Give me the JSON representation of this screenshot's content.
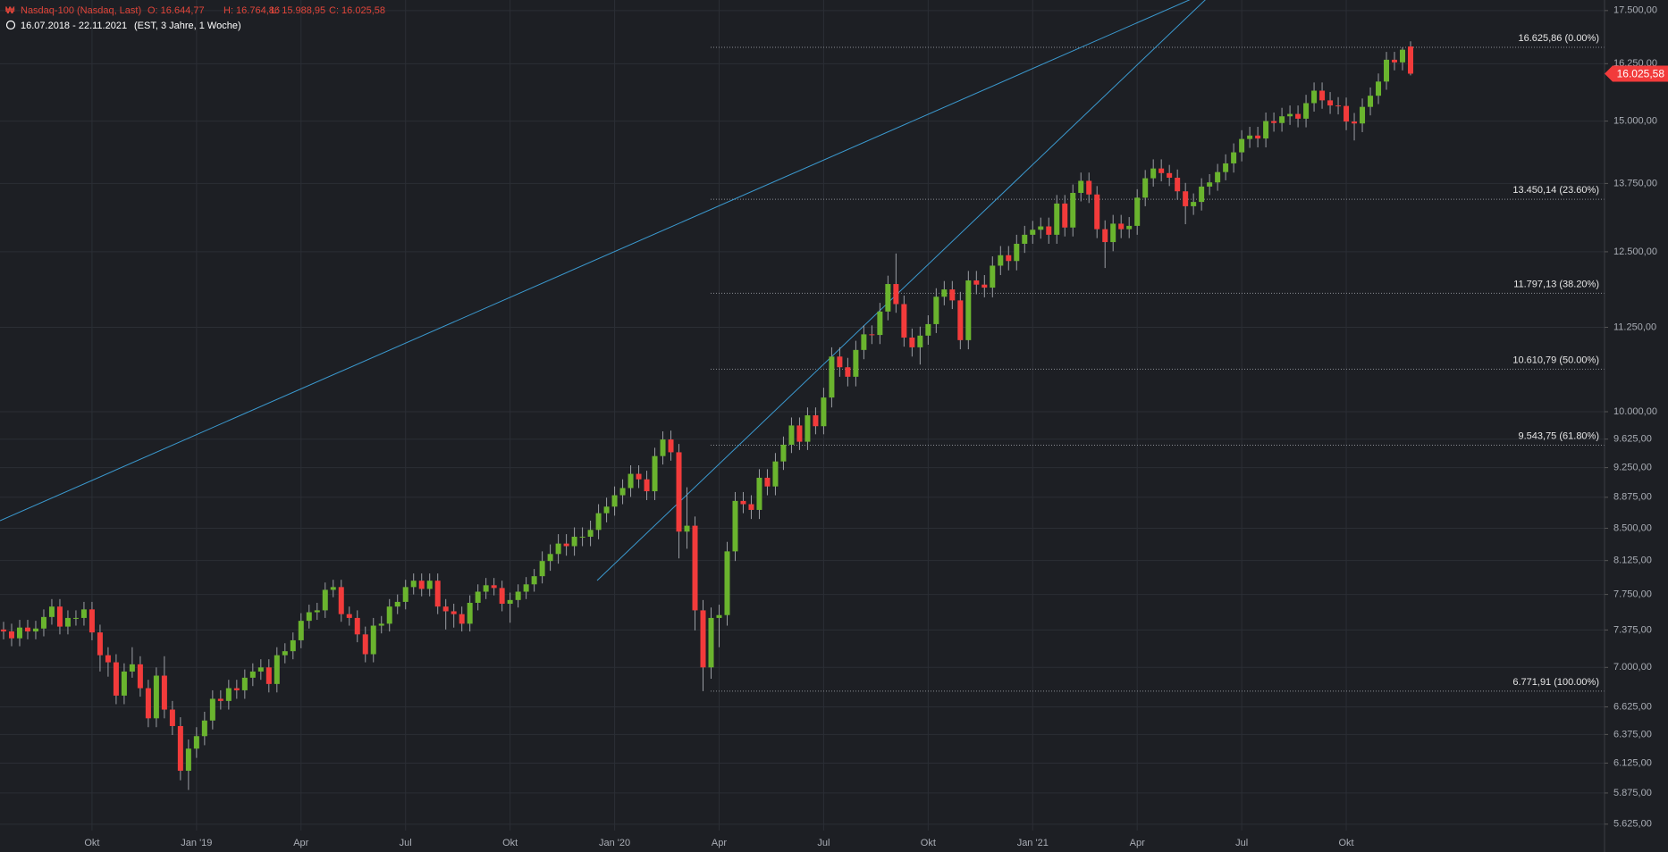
{
  "chart_data": {
    "type": "candlestick",
    "title": "Nasdaq-100 (Nasdaq, Last)",
    "header_values": [
      "O: 16.644,77",
      "H: 16.764,86",
      "L: 15.988,95",
      "C: 16.025,58"
    ],
    "subtitle": "16.07.2018 - 22.11.2021",
    "subtitle_note": "(EST, 3 Jahre, 1 Woche)",
    "log_scale": true,
    "grid": true,
    "up_color": "#6ab42e",
    "down_color": "#f23b3b",
    "ylim": [
      5575,
      17760
    ],
    "yticks": [
      {
        "value": 17500,
        "label": "17.500,00"
      },
      {
        "value": 16250,
        "label": "16.250,00"
      },
      {
        "value": 15000,
        "label": "15.000,00"
      },
      {
        "value": 13750,
        "label": "13.750,00"
      },
      {
        "value": 12500,
        "label": "12.500,00"
      },
      {
        "value": 11250,
        "label": "11.250,00"
      },
      {
        "value": 10000,
        "label": "10.000,00"
      },
      {
        "value": 9625,
        "label": "9.625,00"
      },
      {
        "value": 9250,
        "label": "9.250,00"
      },
      {
        "value": 8875,
        "label": "8.875,00"
      },
      {
        "value": 8500,
        "label": "8.500,00"
      },
      {
        "value": 8125,
        "label": "8.125,00"
      },
      {
        "value": 7750,
        "label": "7.750,00"
      },
      {
        "value": 7375,
        "label": "7.375,00"
      },
      {
        "value": 7000,
        "label": "7.000,00"
      },
      {
        "value": 6625,
        "label": "6.625,00"
      },
      {
        "value": 6375,
        "label": "6.375,00"
      },
      {
        "value": 6125,
        "label": "6.125,00"
      },
      {
        "value": 5875,
        "label": "5.875,00"
      },
      {
        "value": 5625,
        "label": "5.625,00"
      }
    ],
    "last_price": {
      "value": 16025.58,
      "label": "16.025,58"
    },
    "fib_levels": [
      {
        "value": 16625.86,
        "label": "16.625,86 (0.00%)"
      },
      {
        "value": 13450.14,
        "label": "13.450,14 (23.60%)"
      },
      {
        "value": 11797.13,
        "label": "11.797,13 (38.20%)"
      },
      {
        "value": 10610.79,
        "label": "10.610,79 (50.00%)"
      },
      {
        "value": 9543.75,
        "label": "9.543,75 (61.80%)"
      },
      {
        "value": 6771.91,
        "label": "6.771,91 (100.00%)"
      }
    ],
    "categories": [
      null,
      null,
      null,
      null,
      null,
      null,
      null,
      null,
      null,
      null,
      null,
      "Okt",
      null,
      null,
      null,
      null,
      null,
      null,
      null,
      null,
      null,
      null,
      null,
      null,
      "Jan '19",
      null,
      null,
      null,
      null,
      null,
      null,
      null,
      null,
      null,
      null,
      null,
      null,
      "Apr",
      null,
      null,
      null,
      null,
      null,
      null,
      null,
      null,
      null,
      null,
      null,
      null,
      "Jul",
      null,
      null,
      null,
      null,
      null,
      null,
      null,
      null,
      null,
      null,
      null,
      null,
      "Okt",
      null,
      null,
      null,
      null,
      null,
      null,
      null,
      null,
      null,
      null,
      null,
      null,
      "Jan '20",
      null,
      null,
      null,
      null,
      null,
      null,
      null,
      null,
      null,
      null,
      null,
      null,
      "Apr",
      null,
      null,
      null,
      null,
      null,
      null,
      null,
      null,
      null,
      null,
      null,
      null,
      "Jul",
      null,
      null,
      null,
      null,
      null,
      null,
      null,
      null,
      null,
      null,
      null,
      null,
      "Okt",
      null,
      null,
      null,
      null,
      null,
      null,
      null,
      null,
      null,
      null,
      null,
      null,
      "Jan '21",
      null,
      null,
      null,
      null,
      null,
      null,
      null,
      null,
      null,
      null,
      null,
      null,
      "Apr",
      null,
      null,
      null,
      null,
      null,
      null,
      null,
      null,
      null,
      null,
      null,
      null,
      "Jul",
      null,
      null,
      null,
      null,
      null,
      null,
      null,
      null,
      null,
      null,
      null,
      null,
      "Okt",
      null,
      null,
      null,
      null,
      null,
      null,
      null,
      null
    ],
    "open": [
      7380,
      7360,
      7290,
      7400,
      7360,
      7390,
      7510,
      7620,
      7410,
      7500,
      7500,
      7590,
      7350,
      7120,
      7050,
      6730,
      6960,
      7030,
      6800,
      6520,
      6920,
      6600,
      6450,
      6060,
      6250,
      6360,
      6500,
      6700,
      6680,
      6800,
      6780,
      6900,
      6960,
      7000,
      6840,
      7120,
      7160,
      7270,
      7470,
      7560,
      7580,
      7800,
      7830,
      7540,
      7500,
      7330,
      7130,
      7420,
      7440,
      7620,
      7670,
      7830,
      7900,
      7810,
      7900,
      7620,
      7570,
      7540,
      7440,
      7660,
      7780,
      7850,
      7820,
      7650,
      7690,
      7780,
      7860,
      7950,
      8120,
      8200,
      8320,
      8290,
      8400,
      8400,
      8480,
      8680,
      8760,
      8900,
      8990,
      9170,
      9100,
      8950,
      9400,
      9620,
      9450,
      8460,
      8530,
      7580,
      7000,
      7500,
      7530,
      8230,
      8830,
      8790,
      8720,
      9120,
      9010,
      9330,
      9550,
      9810,
      9590,
      9950,
      9800,
      10200,
      10800,
      10640,
      10500,
      10900,
      11140,
      11130,
      11500,
      11950,
      11620,
      11090,
      10940,
      11120,
      11300,
      11740,
      11860,
      11680,
      11050,
      12010,
      11940,
      11890,
      12260,
      12440,
      12340,
      12640,
      12800,
      12890,
      12950,
      12800,
      13370,
      12930,
      13570,
      13800,
      13540,
      12900,
      12670,
      13000,
      12900,
      12960,
      13480,
      13850,
      14040,
      13950,
      13860,
      13600,
      13320,
      13400,
      13690,
      13770,
      13970,
      14140,
      14360,
      14630,
      14700,
      14640,
      15000,
      14960,
      15100,
      15150,
      15050,
      15380,
      15650,
      15440,
      15330,
      15320,
      14990,
      14950,
      15300,
      15540,
      15850,
      16340,
      16280,
      16644.77
    ],
    "high": [
      7460,
      7440,
      7480,
      7480,
      7470,
      7590,
      7700,
      7700,
      7580,
      7580,
      7670,
      7670,
      7430,
      7200,
      7130,
      7040,
      7200,
      7110,
      6880,
      7000,
      7110,
      6680,
      6530,
      6330,
      6440,
      6580,
      6780,
      6780,
      6880,
      6880,
      6980,
      7040,
      7080,
      7080,
      7200,
      7240,
      7350,
      7550,
      7640,
      7660,
      7880,
      7910,
      7910,
      7620,
      7580,
      7410,
      7500,
      7520,
      7700,
      7750,
      7910,
      7980,
      7980,
      7980,
      7980,
      7700,
      7650,
      7620,
      7740,
      7860,
      7930,
      7930,
      7900,
      7770,
      7860,
      7940,
      8030,
      8230,
      8310,
      8430,
      8430,
      8510,
      8510,
      8590,
      8790,
      8870,
      9010,
      9100,
      9280,
      9280,
      9210,
      9510,
      9730,
      9740,
      9560,
      9000,
      8640,
      7690,
      7610,
      7640,
      8340,
      8940,
      8940,
      8900,
      9230,
      9230,
      9440,
      9660,
      9920,
      9920,
      10060,
      10060,
      10340,
      10940,
      10940,
      10780,
      11040,
      11280,
      11280,
      11640,
      12090,
      12470,
      11760,
      11230,
      11260,
      11440,
      11880,
      12000,
      12000,
      11820,
      12170,
      12170,
      12100,
      12420,
      12600,
      12600,
      12800,
      12960,
      13050,
      13110,
      13110,
      13530,
      13530,
      13730,
      13960,
      13960,
      13700,
      13060,
      13160,
      13160,
      13120,
      13640,
      14010,
      14220,
      14220,
      14110,
      14020,
      13760,
      13560,
      13850,
      13930,
      14130,
      14320,
      14540,
      14810,
      14880,
      14880,
      15180,
      15180,
      15280,
      15330,
      15330,
      15560,
      15830,
      15830,
      15620,
      15510,
      15500,
      15170,
      15480,
      15720,
      16030,
      16520,
      16520,
      16625.86,
      16764.86
    ],
    "low": [
      7280,
      7210,
      7210,
      7280,
      7280,
      7310,
      7430,
      7330,
      7330,
      7420,
      7420,
      7270,
      6960,
      6910,
      6650,
      6650,
      6900,
      6720,
      6440,
      6440,
      6520,
      6370,
      5980,
      5900,
      6170,
      6280,
      6420,
      6600,
      6600,
      6700,
      6700,
      6820,
      6880,
      6760,
      6760,
      7040,
      7080,
      7190,
      7390,
      7480,
      7500,
      7720,
      7460,
      7420,
      7250,
      7050,
      7050,
      7340,
      7360,
      7540,
      7590,
      7750,
      7730,
      7730,
      7540,
      7380,
      7400,
      7360,
      7360,
      7580,
      7700,
      7740,
      7570,
      7450,
      7610,
      7700,
      7780,
      7870,
      8010,
      8090,
      8180,
      8180,
      8290,
      8290,
      8370,
      8570,
      8650,
      8790,
      8880,
      8990,
      8840,
      8840,
      9290,
      9340,
      8150,
      8260,
      7370,
      6771.91,
      6890,
      7200,
      7420,
      8120,
      8680,
      8610,
      8610,
      8900,
      8900,
      9220,
      9440,
      9480,
      9480,
      9690,
      9690,
      10060,
      10500,
      10360,
      10360,
      10760,
      10990,
      10990,
      11360,
      11480,
      10950,
      10800,
      10680,
      10980,
      11160,
      11600,
      11540,
      10910,
      10910,
      11780,
      11730,
      11730,
      12100,
      12180,
      12180,
      12480,
      12640,
      12730,
      12640,
      12640,
      12770,
      12770,
      13410,
      13380,
      12740,
      12220,
      12510,
      12740,
      12740,
      12800,
      13320,
      13690,
      13790,
      13700,
      13440,
      12990,
      13160,
      13240,
      13530,
      13610,
      13810,
      13960,
      14180,
      14450,
      14460,
      14460,
      14780,
      14780,
      14920,
      14870,
      14870,
      15200,
      15260,
      15150,
      15140,
      14810,
      14600,
      14770,
      15120,
      15360,
      15670,
      16100,
      16100,
      15988.95
    ],
    "close": [
      7360,
      7290,
      7400,
      7360,
      7390,
      7510,
      7620,
      7410,
      7500,
      7500,
      7590,
      7350,
      7120,
      7050,
      6730,
      6960,
      7030,
      6800,
      6520,
      6920,
      6600,
      6450,
      6060,
      6250,
      6360,
      6500,
      6700,
      6680,
      6800,
      6780,
      6900,
      6960,
      7000,
      6840,
      7120,
      7160,
      7270,
      7470,
      7560,
      7580,
      7800,
      7830,
      7540,
      7500,
      7330,
      7130,
      7420,
      7440,
      7620,
      7670,
      7830,
      7900,
      7810,
      7900,
      7620,
      7570,
      7540,
      7440,
      7660,
      7780,
      7850,
      7820,
      7650,
      7690,
      7780,
      7860,
      7950,
      8120,
      8200,
      8320,
      8290,
      8400,
      8400,
      8480,
      8680,
      8760,
      8900,
      8990,
      9170,
      9100,
      8950,
      9400,
      9620,
      9450,
      8460,
      8530,
      7580,
      7000,
      7500,
      7530,
      8230,
      8830,
      8790,
      8720,
      9120,
      9010,
      9330,
      9550,
      9810,
      9590,
      9950,
      9800,
      10200,
      10800,
      10640,
      10500,
      10900,
      11140,
      11130,
      11500,
      11950,
      11620,
      11090,
      10940,
      11120,
      11300,
      11740,
      11860,
      11680,
      11050,
      12010,
      11940,
      11890,
      12260,
      12440,
      12340,
      12640,
      12800,
      12890,
      12950,
      12800,
      13370,
      12930,
      13570,
      13800,
      13540,
      12900,
      12670,
      13000,
      12900,
      12960,
      13480,
      13850,
      14040,
      13950,
      13860,
      13600,
      13320,
      13400,
      13690,
      13770,
      13970,
      14140,
      14360,
      14630,
      14700,
      14640,
      15000,
      14960,
      15100,
      15150,
      15050,
      15380,
      15650,
      15440,
      15330,
      15320,
      14990,
      14950,
      15300,
      15540,
      15850,
      16340,
      16280,
      16570,
      16025.58
    ]
  }
}
